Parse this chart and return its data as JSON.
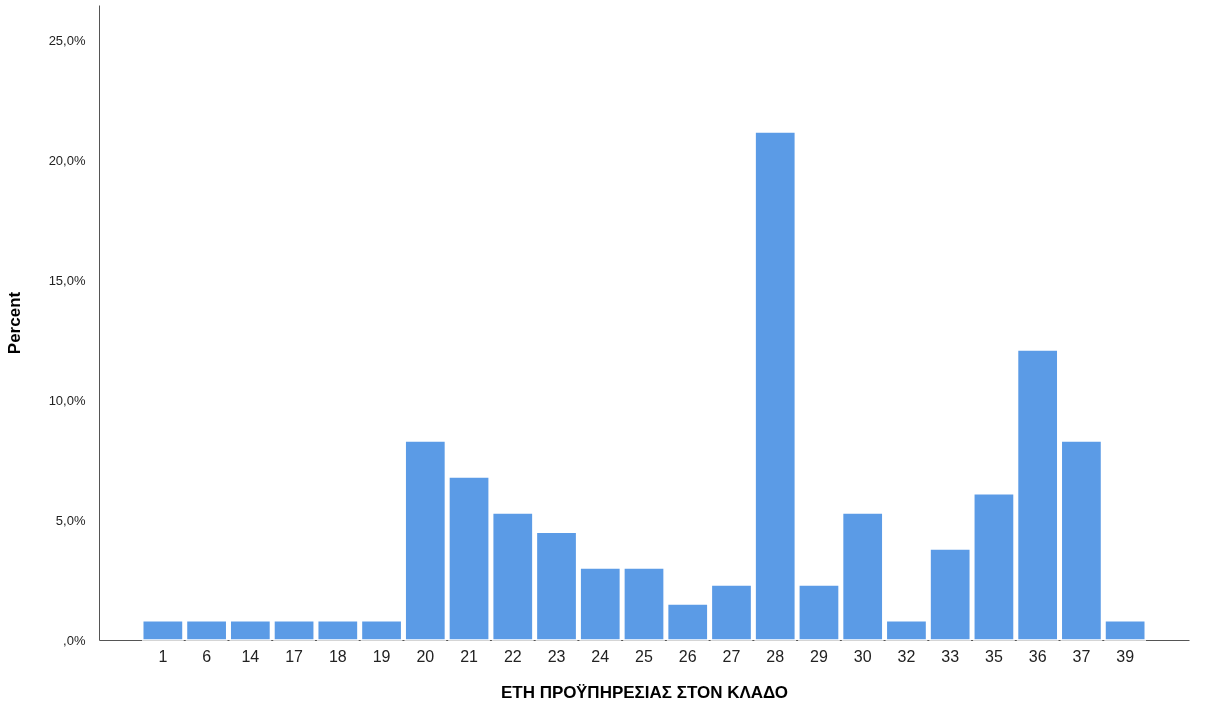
{
  "chart_data": {
    "type": "bar",
    "xlabel": "ΕΤΗ ΠΡΟΫΠΗΡΕΣΙΑΣ ΣΤΟΝ ΚΛΑΔΟ",
    "ylabel": "Percent",
    "categories": [
      "1",
      "6",
      "14",
      "17",
      "18",
      "19",
      "20",
      "21",
      "22",
      "23",
      "24",
      "25",
      "26",
      "27",
      "28",
      "29",
      "30",
      "32",
      "33",
      "35",
      "36",
      "37",
      "39"
    ],
    "values": [
      0.8,
      0.8,
      0.8,
      0.8,
      0.8,
      0.8,
      8.3,
      6.8,
      5.3,
      4.5,
      3.0,
      3.0,
      1.5,
      2.3,
      21.2,
      2.3,
      5.3,
      0.8,
      3.8,
      6.1,
      12.1,
      8.3,
      0.8
    ],
    "color": "#5b9be6",
    "ylim": [
      0,
      26.5
    ],
    "yticks": [
      {
        "value": 0,
        "label": ",0%"
      },
      {
        "value": 5,
        "label": "5,0%"
      },
      {
        "value": 10,
        "label": "10,0%"
      },
      {
        "value": 15,
        "label": "15,0%"
      },
      {
        "value": 20,
        "label": "20,0%"
      },
      {
        "value": 25,
        "label": "25,0%"
      }
    ],
    "grid": false
  }
}
